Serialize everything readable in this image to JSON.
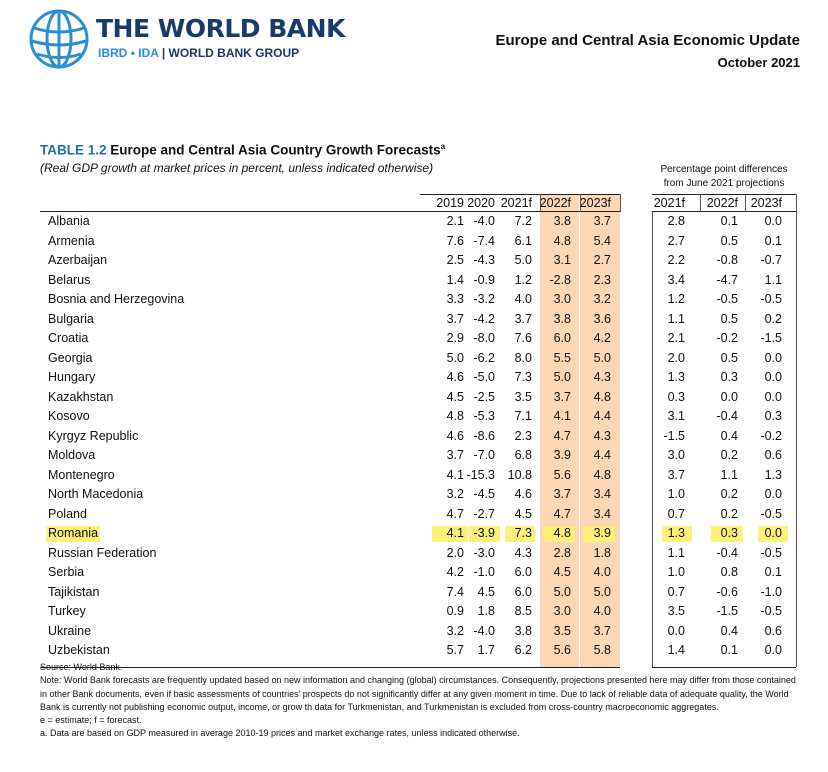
{
  "brand": {
    "name": "THE WORLD BANK",
    "sub_ibrd": "IBRD",
    "sub_dot": "•",
    "sub_ida": "IDA",
    "sub_sep": "|",
    "sub_group": "WORLD BANK GROUP"
  },
  "header": {
    "title": "Europe and Central Asia Economic Update",
    "date": "October 2021"
  },
  "table": {
    "number": "TABLE 1.2",
    "title": "Europe and Central Asia Country Growth Forecasts",
    "title_sup": "a",
    "subtitle": "(Real GDP growth at market prices in percent, unless indicated otherwise)",
    "pp_header_line1": "Percentage point differences",
    "pp_header_line2": "from June 2021 projections",
    "columns": [
      "2019",
      "2020",
      "2021f",
      "2022f",
      "2023f"
    ],
    "pp_columns": [
      "2021f",
      "2022f",
      "2023f"
    ],
    "rows": [
      {
        "country": "Albania",
        "v": [
          "2.1",
          "-4.0",
          "7.2",
          "3.8",
          "3.7"
        ],
        "d": [
          "2.8",
          "0.1",
          "0.0"
        ]
      },
      {
        "country": "Armenia",
        "v": [
          "7.6",
          "-7.4",
          "6.1",
          "4.8",
          "5.4"
        ],
        "d": [
          "2.7",
          "0.5",
          "0.1"
        ]
      },
      {
        "country": "Azerbaijan",
        "v": [
          "2.5",
          "-4.3",
          "5.0",
          "3.1",
          "2.7"
        ],
        "d": [
          "2.2",
          "-0.8",
          "-0.7"
        ]
      },
      {
        "country": "Belarus",
        "v": [
          "1.4",
          "-0.9",
          "1.2",
          "-2.8",
          "2.3"
        ],
        "d": [
          "3.4",
          "-4.7",
          "1.1"
        ]
      },
      {
        "country": "Bosnia and Herzegovina",
        "v": [
          "3.3",
          "-3.2",
          "4.0",
          "3.0",
          "3.2"
        ],
        "d": [
          "1.2",
          "-0.5",
          "-0.5"
        ]
      },
      {
        "country": "Bulgaria",
        "v": [
          "3.7",
          "-4.2",
          "3.7",
          "3.8",
          "3.6"
        ],
        "d": [
          "1.1",
          "0.5",
          "0.2"
        ]
      },
      {
        "country": "Croatia",
        "v": [
          "2.9",
          "-8.0",
          "7.6",
          "6.0",
          "4.2"
        ],
        "d": [
          "2.1",
          "-0.2",
          "-1.5"
        ]
      },
      {
        "country": "Georgia",
        "v": [
          "5.0",
          "-6.2",
          "8.0",
          "5.5",
          "5.0"
        ],
        "d": [
          "2.0",
          "0.5",
          "0.0"
        ]
      },
      {
        "country": "Hungary",
        "v": [
          "4.6",
          "-5.0",
          "7.3",
          "5.0",
          "4.3"
        ],
        "d": [
          "1.3",
          "0.3",
          "0.0"
        ]
      },
      {
        "country": "Kazakhstan",
        "v": [
          "4.5",
          "-2.5",
          "3.5",
          "3.7",
          "4.8"
        ],
        "d": [
          "0.3",
          "0.0",
          "0.0"
        ]
      },
      {
        "country": "Kosovo",
        "v": [
          "4.8",
          "-5.3",
          "7.1",
          "4.1",
          "4.4"
        ],
        "d": [
          "3.1",
          "-0.4",
          "0.3"
        ]
      },
      {
        "country": "Kyrgyz Republic",
        "v": [
          "4.6",
          "-8.6",
          "2.3",
          "4.7",
          "4.3"
        ],
        "d": [
          "-1.5",
          "0.4",
          "-0.2"
        ]
      },
      {
        "country": "Moldova",
        "v": [
          "3.7",
          "-7.0",
          "6.8",
          "3.9",
          "4.4"
        ],
        "d": [
          "3.0",
          "0.2",
          "0.6"
        ]
      },
      {
        "country": "Montenegro",
        "v": [
          "4.1",
          "-15.3",
          "10.8",
          "5.6",
          "4.8"
        ],
        "d": [
          "3.7",
          "1.1",
          "1.3"
        ]
      },
      {
        "country": "North Macedonia",
        "v": [
          "3.2",
          "-4.5",
          "4.6",
          "3.7",
          "3.4"
        ],
        "d": [
          "1.0",
          "0.2",
          "0.0"
        ]
      },
      {
        "country": "Poland",
        "v": [
          "4.7",
          "-2.7",
          "4.5",
          "4.7",
          "3.4"
        ],
        "d": [
          "0.7",
          "0.2",
          "-0.5"
        ]
      },
      {
        "country": "Romania",
        "v": [
          "4.1",
          "-3.9",
          "7.3",
          "4.8",
          "3.9"
        ],
        "d": [
          "1.3",
          "0.3",
          "0.0"
        ]
      },
      {
        "country": "Russian Federation",
        "v": [
          "2.0",
          "-3.0",
          "4.3",
          "2.8",
          "1.8"
        ],
        "d": [
          "1.1",
          "-0.4",
          "-0.5"
        ]
      },
      {
        "country": "Serbia",
        "v": [
          "4.2",
          "-1.0",
          "6.0",
          "4.5",
          "4.0"
        ],
        "d": [
          "1.0",
          "0.8",
          "0.1"
        ]
      },
      {
        "country": "Tajikistan",
        "v": [
          "7.4",
          "4.5",
          "6.0",
          "5.0",
          "5.0"
        ],
        "d": [
          "0.7",
          "-0.6",
          "-1.0"
        ]
      },
      {
        "country": "Turkey",
        "v": [
          "0.9",
          "1.8",
          "8.5",
          "3.0",
          "4.0"
        ],
        "d": [
          "3.5",
          "-1.5",
          "-0.5"
        ]
      },
      {
        "country": "Ukraine",
        "v": [
          "3.2",
          "-4.0",
          "3.8",
          "3.5",
          "3.7"
        ],
        "d": [
          "0.0",
          "0.4",
          "0.6"
        ]
      },
      {
        "country": "Uzbekistan",
        "v": [
          "5.7",
          "1.7",
          "6.2",
          "5.6",
          "5.8"
        ],
        "d": [
          "1.4",
          "0.1",
          "0.0"
        ]
      }
    ]
  },
  "notes": {
    "source": "Source:  World Bank.",
    "note": "Note:  World Bank forecasts are frequently updated based on new information and changing (global) circumstances. Consequently, projections presented here may differ from those contained in other Bank documents, even if basic assessments of countries’ prospects do not significantly differ at any given moment in time. Due to lack of reliable data of adequate quality, the World Bank is currently not publishing economic output, income, or grow th data for Turkmenistan, and Turkmenistan is excluded from cross-country macroeconomic aggregates.",
    "legend": "e = estimate; f = forecast.",
    "footnote_a": "a. Data are based on GDP measured in average 2010-19 prices and market exchange rates, unless indicated otherwise."
  },
  "colors": {
    "brand_navy": "#1b3a6b",
    "brand_blue": "#2a8fd4",
    "title_blue": "#1e6fb5",
    "forecast_band": "#fbd7b5",
    "highlight": "#fff07a"
  }
}
